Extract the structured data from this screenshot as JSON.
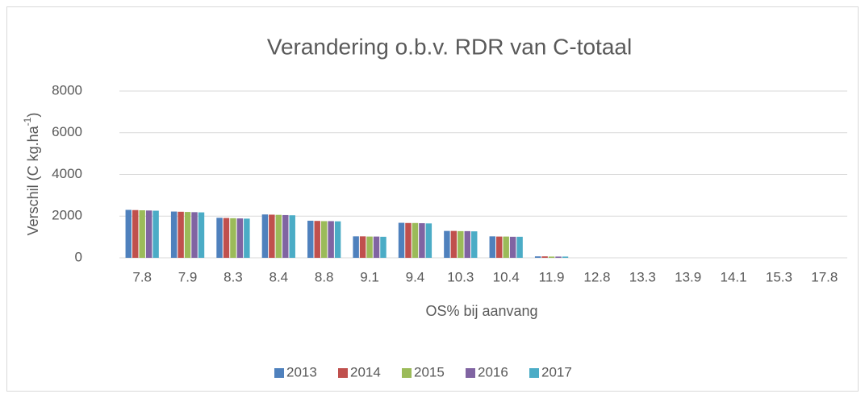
{
  "chart_data": {
    "type": "bar",
    "title": "Verandering o.b.v. RDR van C-totaal",
    "x_label": "OS% bij aanvang",
    "y_label": [
      "Verschil (C kg.ha",
      "-1",
      ")"
    ],
    "categories": [
      "7.8",
      "7.9",
      "8.3",
      "8.4",
      "8.8",
      "9.1",
      "9.4",
      "10.3",
      "10.4",
      "11.9",
      "12.8",
      "13.3",
      "13.9",
      "14.1",
      "15.3",
      "17.8"
    ],
    "series": [
      {
        "name": "2013",
        "color": "#4f81bd",
        "values": [
          2300,
          2220,
          1920,
          2080,
          1780,
          1030,
          1680,
          1290,
          1030,
          70,
          0,
          0,
          0,
          0,
          0,
          0
        ]
      },
      {
        "name": "2014",
        "color": "#c0504d",
        "values": [
          2290,
          2210,
          1910,
          2070,
          1770,
          1030,
          1670,
          1290,
          1020,
          70,
          0,
          0,
          0,
          0,
          0,
          0
        ]
      },
      {
        "name": "2015",
        "color": "#9bbb59",
        "values": [
          2280,
          2200,
          1900,
          2060,
          1760,
          1020,
          1670,
          1280,
          1020,
          60,
          0,
          0,
          0,
          0,
          0,
          0
        ]
      },
      {
        "name": "2016",
        "color": "#8064a2",
        "values": [
          2270,
          2190,
          1890,
          2050,
          1760,
          1020,
          1660,
          1280,
          1010,
          60,
          0,
          0,
          0,
          0,
          0,
          0
        ]
      },
      {
        "name": "2017",
        "color": "#4bacc6",
        "values": [
          2260,
          2180,
          1880,
          2040,
          1750,
          1010,
          1650,
          1270,
          1010,
          60,
          0,
          0,
          0,
          0,
          0,
          0
        ]
      }
    ],
    "ylim": [
      0,
      8000
    ],
    "yticks": [
      0,
      2000,
      4000,
      6000,
      8000
    ],
    "grid": true,
    "legend": "bottom"
  }
}
